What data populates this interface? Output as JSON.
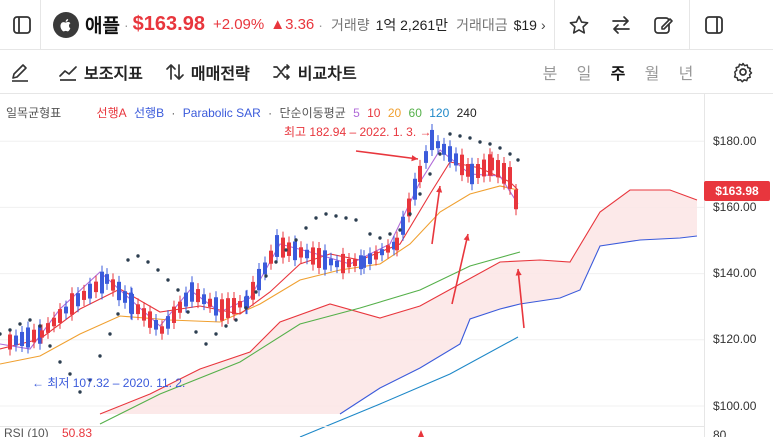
{
  "header": {
    "stock_name": "애플",
    "price": "$163.98",
    "change_pct": "+2.09%",
    "change_abs": "▲3.36",
    "volume_label": "거래량",
    "volume_value": "1억 2,261만",
    "trade_amount_label": "거래대금",
    "trade_amount_value": "$19",
    "separator": "·"
  },
  "toolbar": {
    "indicator_label": "보조지표",
    "strategy_label": "매매전략",
    "compare_label": "비교차트",
    "periods": [
      "분",
      "일",
      "주",
      "월",
      "년"
    ],
    "active_period": "주"
  },
  "legend": {
    "cloud_name": "일목균형표",
    "span_a": "선행A",
    "span_b": "선행B",
    "sar": "Parabolic SAR",
    "ma_name": "단순이동평균",
    "ma_periods": [
      "5",
      "10",
      "20",
      "60",
      "120",
      "240"
    ],
    "sep": "·"
  },
  "annotations": {
    "high": "최고 182.94 – 2022. 1. 3. →",
    "low": "← 최저 107.32 – 2020. 11. 2."
  },
  "yaxis": {
    "ticks": [
      "$180.00",
      "$160.00",
      "$140.00",
      "$120.00",
      "$100.00"
    ],
    "current_price_tag": "$163.98"
  },
  "rsi": {
    "label": "RSI (10)",
    "value": "50.83",
    "top_tick": "80"
  },
  "colors": {
    "up": "#e8363d",
    "down": "#3b5bdb",
    "span_a": "#e8363d",
    "span_b": "#3b5bdb",
    "ma5": "#b06ad8",
    "ma10": "#e8363d",
    "ma20": "#f0a030",
    "ma60": "#55b04a",
    "ma120": "#1e88c8",
    "ma240": "#222222",
    "sar": "#2c3e50"
  }
}
